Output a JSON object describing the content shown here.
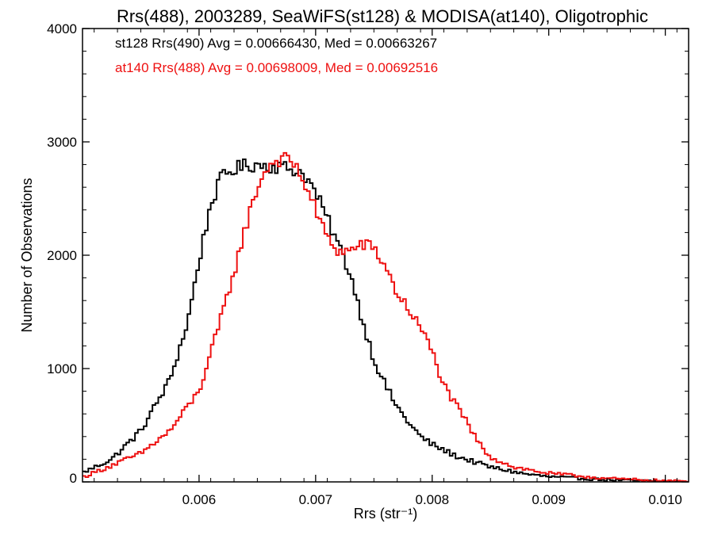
{
  "chart_data": {
    "type": "line",
    "title": "Rrs(488), 2003289, SeaWiFS(st128) & MODISA(at140), Oligotrophic",
    "xlabel": "Rrs (str⁻¹)",
    "ylabel": "Number of Observations",
    "xlim": [
      0.005,
      0.0102
    ],
    "ylim": [
      0,
      4000
    ],
    "x_ticks": [
      0.006,
      0.007,
      0.008,
      0.009,
      0.01
    ],
    "x_tick_labels": [
      "0.006",
      "0.007",
      "0.008",
      "0.009",
      "0.010"
    ],
    "y_ticks": [
      0,
      1000,
      2000,
      3000,
      4000
    ],
    "y_tick_labels": [
      "0",
      "1000",
      "2000",
      "3000",
      "4000"
    ],
    "legend_position": "top-left",
    "series": [
      {
        "name": "st128 Rrs(490) Avg = 0.00666430, Med = 0.00663267",
        "color": "#000000",
        "x": [
          0.005,
          0.00525,
          0.0055,
          0.00575,
          0.0059,
          0.006,
          0.0061,
          0.0062,
          0.0063,
          0.0064,
          0.0065,
          0.0066,
          0.0067,
          0.0068,
          0.0069,
          0.007,
          0.0071,
          0.0072,
          0.0073,
          0.0074,
          0.0075,
          0.0076,
          0.0077,
          0.0078,
          0.0079,
          0.008,
          0.0082,
          0.0085,
          0.0088,
          0.009,
          0.0095,
          0.01,
          0.0102
        ],
        "values": [
          80,
          200,
          450,
          900,
          1400,
          1950,
          2450,
          2700,
          2760,
          2790,
          2800,
          2790,
          2780,
          2760,
          2720,
          2550,
          2320,
          2080,
          1830,
          1430,
          1080,
          850,
          660,
          520,
          400,
          330,
          230,
          130,
          70,
          45,
          18,
          5,
          0
        ]
      },
      {
        "name": "at140 Rrs(488) Avg = 0.00698009, Med = 0.00692516",
        "color": "#ee1111",
        "x": [
          0.005,
          0.0055,
          0.00575,
          0.006,
          0.00615,
          0.0063,
          0.0064,
          0.0065,
          0.0066,
          0.0067,
          0.0068,
          0.0069,
          0.007,
          0.0071,
          0.0072,
          0.0073,
          0.0074,
          0.0075,
          0.0076,
          0.0077,
          0.0078,
          0.0079,
          0.008,
          0.0081,
          0.0082,
          0.0083,
          0.0084,
          0.0085,
          0.0087,
          0.009,
          0.0095,
          0.01,
          0.0102
        ],
        "values": [
          40,
          250,
          450,
          800,
          1300,
          1850,
          2250,
          2600,
          2800,
          2850,
          2830,
          2650,
          2400,
          2150,
          2030,
          2040,
          2100,
          2060,
          1900,
          1660,
          1520,
          1360,
          1150,
          850,
          680,
          520,
          340,
          220,
          130,
          75,
          30,
          10,
          5
        ]
      }
    ]
  }
}
